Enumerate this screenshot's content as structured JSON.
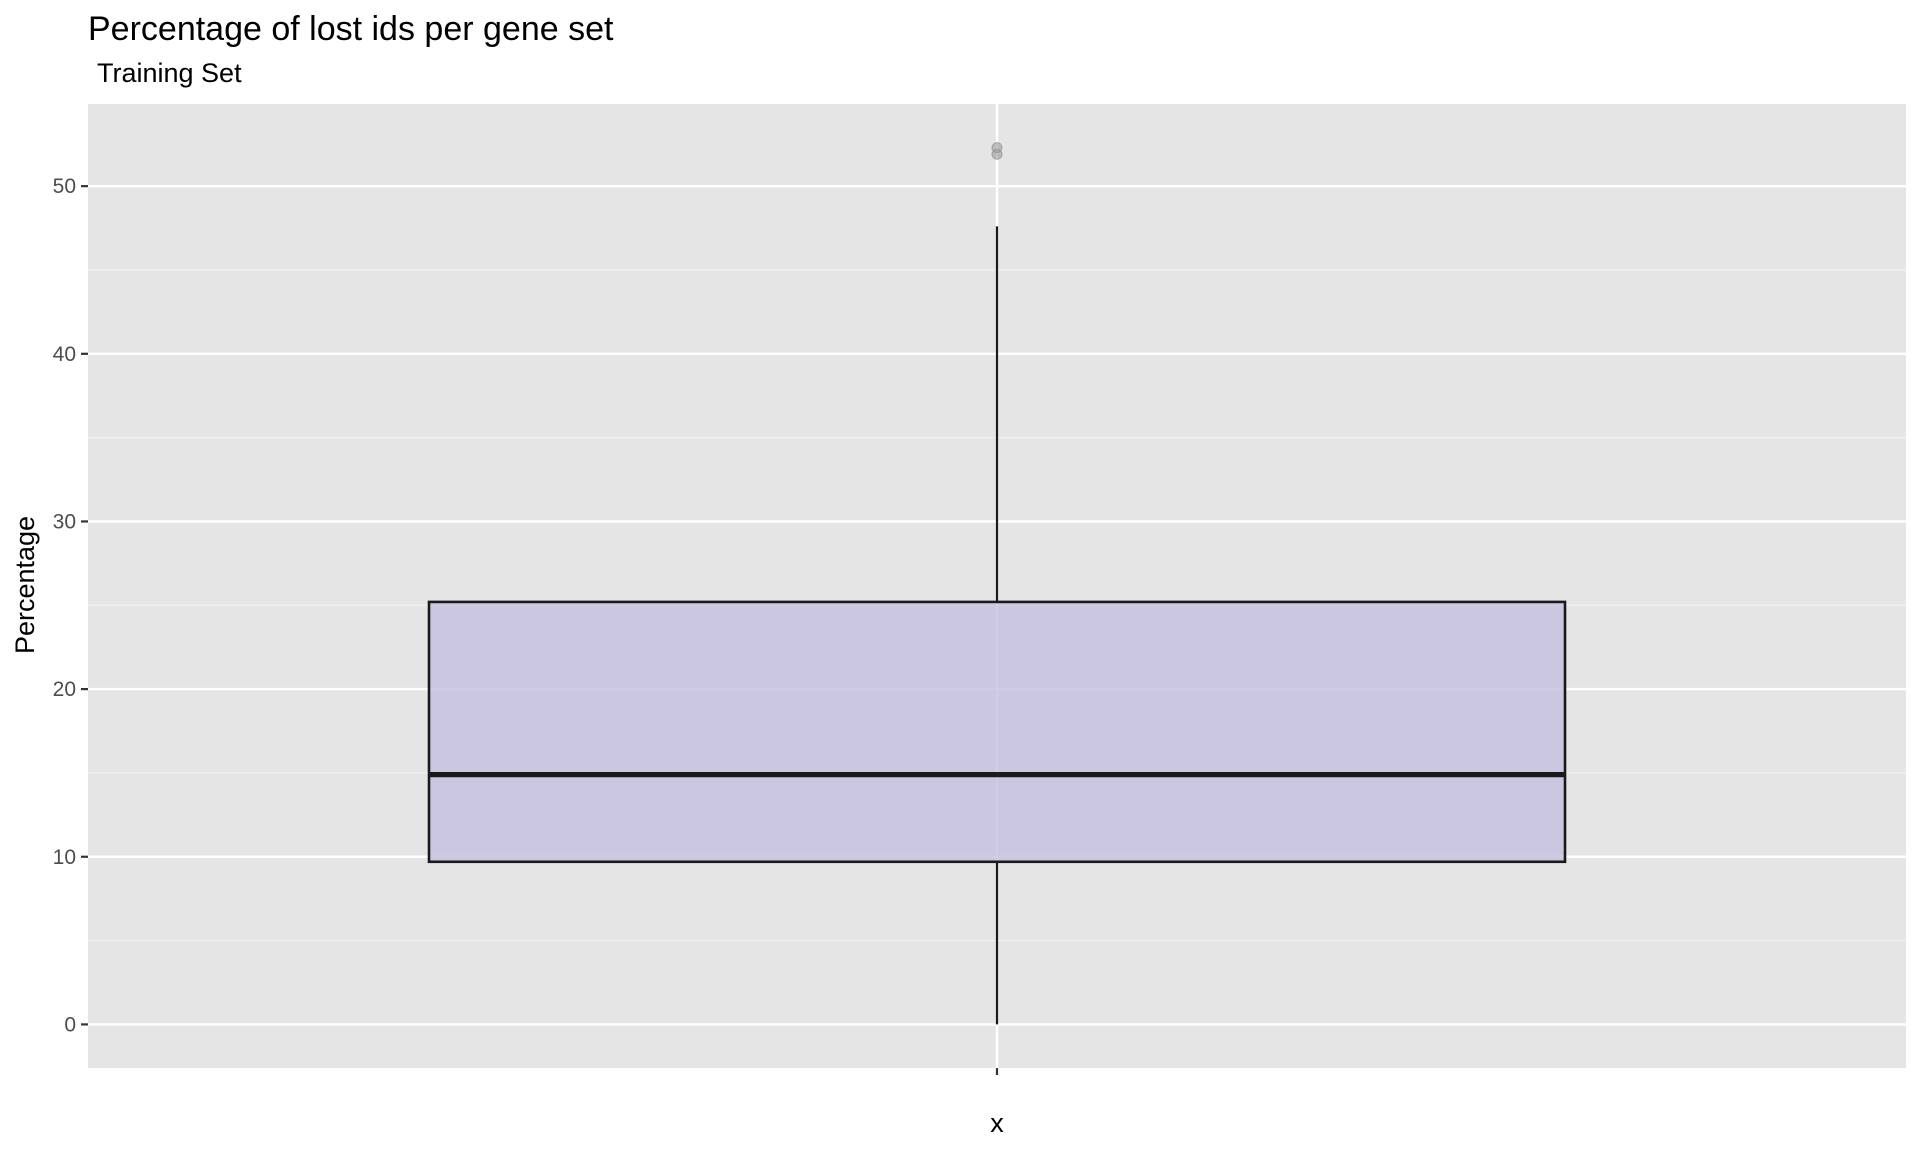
{
  "chart_data": {
    "type": "boxplot",
    "title": "Percentage of lost ids per gene set",
    "subtitle": "Training Set",
    "xlabel": "x",
    "ylabel": "Percentage",
    "categories": [
      ""
    ],
    "ylim": [
      -2.6,
      54.9
    ],
    "yticks": [
      0,
      10,
      20,
      30,
      40,
      50
    ],
    "ytick_labels": [
      "0",
      "10",
      "20",
      "30",
      "40",
      "50"
    ],
    "box": {
      "whisker_low": 0,
      "q1": 9.7,
      "median": 14.9,
      "q3": 25.2,
      "whisker_high": 47.6,
      "outliers": [
        51.9,
        52.3
      ]
    },
    "grid": true,
    "legend": "none"
  },
  "colors": {
    "panel_background": "#e5e5e5",
    "grid_major": "#ffffff",
    "grid_minor": "#f2f2f2",
    "box_fill": "#c5bfe0",
    "box_outline": "#1a1a1a",
    "outlier": "#999999"
  }
}
